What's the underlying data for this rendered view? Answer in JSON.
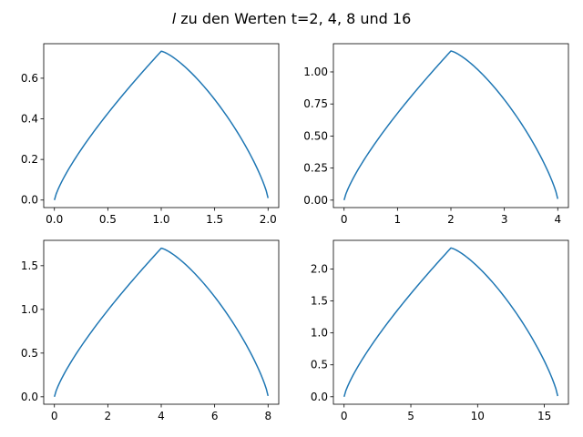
{
  "figure": {
    "title_prefix": "l",
    "title_rest": " zu den Werten t=2, 4, 8 und 16"
  },
  "chart_data": [
    {
      "type": "line",
      "t": 2,
      "xlim": [
        -0.1,
        2.1
      ],
      "ylim": [
        -0.037,
        0.77
      ],
      "xticks": [
        0,
        0.5,
        1,
        1.5,
        2
      ],
      "xtick_labels": [
        "0.0",
        "0.5",
        "1.0",
        "1.5",
        "2.0"
      ],
      "yticks": [
        0,
        0.2,
        0.4,
        0.6
      ],
      "ytick_labels": [
        "0.0",
        "0.2",
        "0.4",
        "0.6"
      ],
      "peak": [
        1,
        0.733
      ],
      "end_y": 0.01,
      "grid": false,
      "color": "#1f77b4"
    },
    {
      "type": "line",
      "t": 4,
      "xlim": [
        -0.2,
        4.2
      ],
      "ylim": [
        -0.058,
        1.22
      ],
      "xticks": [
        0,
        1,
        2,
        3,
        4
      ],
      "xtick_labels": [
        "0",
        "1",
        "2",
        "3",
        "4"
      ],
      "yticks": [
        0,
        0.25,
        0.5,
        0.75,
        1.0
      ],
      "ytick_labels": [
        "0.00",
        "0.25",
        "0.50",
        "0.75",
        "1.00"
      ],
      "peak": [
        2,
        1.163
      ],
      "end_y": 0.01,
      "grid": false,
      "color": "#1f77b4"
    },
    {
      "type": "line",
      "t": 8,
      "xlim": [
        -0.4,
        8.4
      ],
      "ylim": [
        -0.085,
        1.79
      ],
      "xticks": [
        0,
        2,
        4,
        6,
        8
      ],
      "xtick_labels": [
        "0",
        "2",
        "4",
        "6",
        "8"
      ],
      "yticks": [
        0,
        0.5,
        1.0,
        1.5
      ],
      "ytick_labels": [
        "0.0",
        "0.5",
        "1.0",
        "1.5"
      ],
      "peak": [
        4,
        1.7
      ],
      "end_y": 0.01,
      "grid": false,
      "color": "#1f77b4"
    },
    {
      "type": "line",
      "t": 16,
      "xlim": [
        -0.8,
        16.8
      ],
      "ylim": [
        -0.117,
        2.45
      ],
      "xticks": [
        0,
        5,
        10,
        15
      ],
      "xtick_labels": [
        "0",
        "5",
        "10",
        "15"
      ],
      "yticks": [
        0,
        0.5,
        1.0,
        1.5,
        2.0
      ],
      "ytick_labels": [
        "0.0",
        "0.5",
        "1.0",
        "1.5",
        "2.0"
      ],
      "peak": [
        8,
        2.33
      ],
      "end_y": 0.01,
      "grid": false,
      "color": "#1f77b4"
    }
  ]
}
